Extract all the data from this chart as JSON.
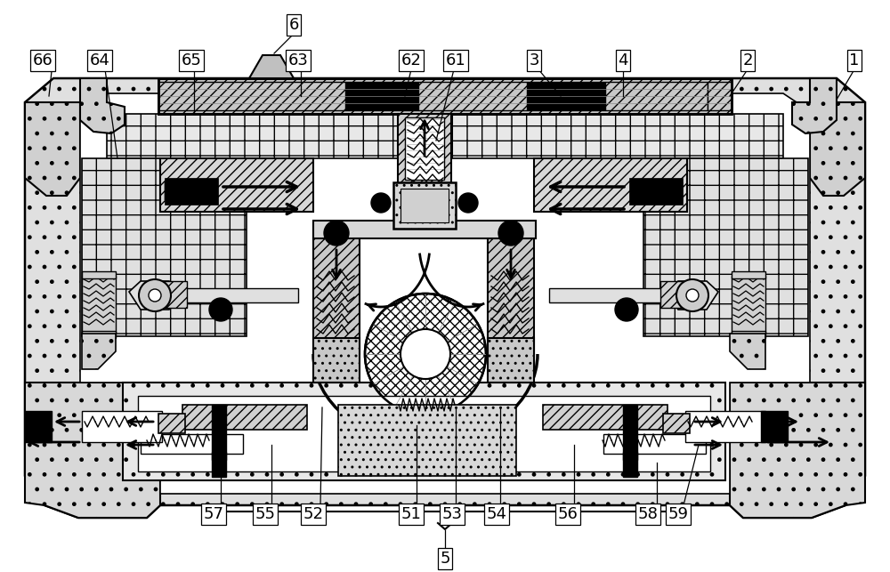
{
  "bg_color": "#ffffff",
  "line_color": "#000000",
  "fig_width": 10.0,
  "fig_height": 6.43
}
